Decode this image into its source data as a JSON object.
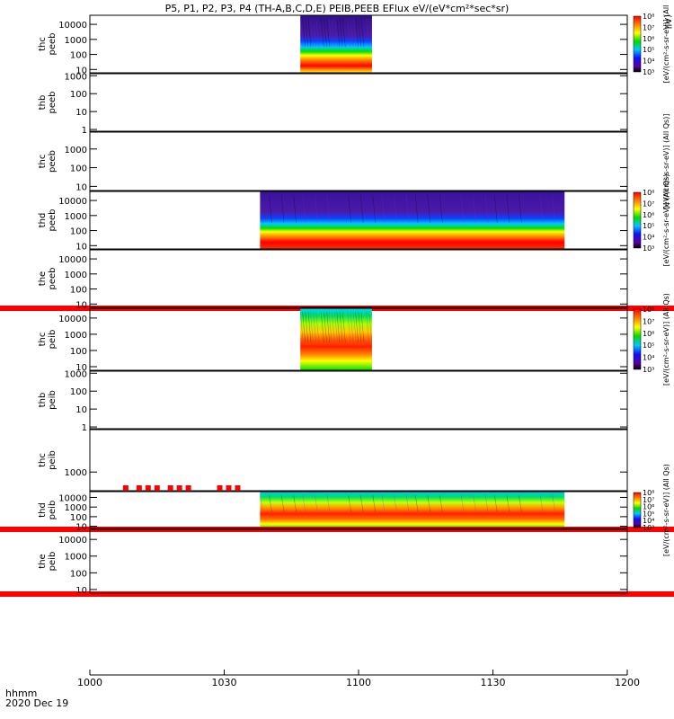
{
  "title": "P5, P1, P2, P3, P4 (TH-A,B,C,D,E) PEIB,PEEB EFlux eV/(eV*cm²*sec*sr)",
  "title_right_fragment": "(All",
  "time_axis": {
    "label_line1": "hhmm",
    "label_line2": "2020 Dec 19",
    "ticks": [
      {
        "t": 1000,
        "label": "1000"
      },
      {
        "t": 1030,
        "label": "1030"
      },
      {
        "t": 1060,
        "label": "1100"
      },
      {
        "t": 1090,
        "label": "1130"
      },
      {
        "t": 1120,
        "label": "1200"
      }
    ],
    "range_minutes": [
      1000,
      1120
    ]
  },
  "colors": {
    "flag_red": "#ff0000",
    "trace_black": "#000000"
  },
  "chart_data": [
    {
      "type": "heatmap",
      "panel": "thc peeb",
      "ylabel": [
        "thc",
        "peeb"
      ],
      "yscale": "log",
      "ylim": [
        6,
        40000
      ],
      "yticks": [
        {
          "v": 10,
          "label": "10"
        },
        {
          "v": 100,
          "label": "100"
        },
        {
          "v": 1000,
          "label": "1000"
        },
        {
          "v": 10000,
          "label": "10000"
        }
      ],
      "data_interval_minutes": [
        1047,
        1063
      ],
      "colorbar": {
        "range": [
          1000,
          100000000
        ],
        "ticks": [
          {
            "v": 1000,
            "label": "10³"
          },
          {
            "v": 10000,
            "label": "10⁴"
          },
          {
            "v": 100000,
            "label": "10⁵"
          },
          {
            "v": 1000000,
            "label": "10⁶"
          },
          {
            "v": 10000000,
            "label": "10⁷"
          },
          {
            "v": 100000000,
            "label": "10⁸"
          }
        ],
        "label": "[eV/(cm²-s-sr-eV)] (All"
      }
    },
    {
      "type": "heatmap",
      "panel": "thb peeb",
      "ylabel": [
        "thb",
        "peeb"
      ],
      "yscale": "log",
      "ylim": [
        0.8,
        1300
      ],
      "yticks": [
        {
          "v": 1,
          "label": "1"
        },
        {
          "v": 10,
          "label": "10"
        },
        {
          "v": 100,
          "label": "100"
        },
        {
          "v": 1000,
          "label": "1000"
        }
      ],
      "data_interval_minutes": null
    },
    {
      "type": "heatmap",
      "panel": "thc peeb",
      "ylabel": [
        "thc",
        "peeb"
      ],
      "yscale": "log",
      "ylim": [
        6,
        8000
      ],
      "yticks": [
        {
          "v": 10,
          "label": "10"
        },
        {
          "v": 100,
          "label": "100"
        },
        {
          "v": 1000,
          "label": "1000"
        }
      ],
      "data_interval_minutes": null,
      "colorbar_label": "[eV/(cm²-s-sr-eV)] (All Qs)]"
    },
    {
      "type": "heatmap",
      "panel": "thd peeb",
      "ylabel": [
        "thd",
        "peeb"
      ],
      "yscale": "log",
      "ylim": [
        6,
        40000
      ],
      "yticks": [
        {
          "v": 10,
          "label": "10"
        },
        {
          "v": 100,
          "label": "100"
        },
        {
          "v": 1000,
          "label": "1000"
        },
        {
          "v": 10000,
          "label": "10000"
        }
      ],
      "data_interval_minutes": [
        1038,
        1106
      ],
      "colorbar": {
        "range": [
          1000,
          100000000
        ],
        "ticks": [
          {
            "v": 1000,
            "label": "10³"
          },
          {
            "v": 10000,
            "label": "10⁴"
          },
          {
            "v": 100000,
            "label": "10⁵"
          },
          {
            "v": 1000000,
            "label": "10⁶"
          },
          {
            "v": 10000000,
            "label": "10⁷"
          },
          {
            "v": 100000000,
            "label": "10⁸"
          }
        ],
        "label": "[eV/(cm²-s-sr-eV)] (All Qs)"
      }
    },
    {
      "type": "heatmap",
      "panel": "the peeb",
      "ylabel": [
        "the",
        "peeb"
      ],
      "yscale": "log",
      "ylim": [
        6,
        40000
      ],
      "yticks": [
        {
          "v": 10,
          "label": "10"
        },
        {
          "v": 100,
          "label": "100"
        },
        {
          "v": 1000,
          "label": "1000"
        },
        {
          "v": 10000,
          "label": "10000"
        }
      ],
      "data_interval_minutes": null,
      "flag_intervals_minutes": [
        [
          1000,
          1120
        ]
      ]
    },
    {
      "type": "heatmap",
      "panel": "thc peib",
      "ylabel": [
        "thc",
        "peib"
      ],
      "yscale": "log",
      "ylim": [
        6,
        40000
      ],
      "yticks": [
        {
          "v": 10,
          "label": "10"
        },
        {
          "v": 100,
          "label": "100"
        },
        {
          "v": 1000,
          "label": "1000"
        },
        {
          "v": 10000,
          "label": "10000"
        }
      ],
      "data_interval_minutes": [
        1047,
        1063
      ],
      "colorbar": {
        "range": [
          1000,
          100000000
        ],
        "ticks": [
          {
            "v": 1000,
            "label": "10³"
          },
          {
            "v": 10000,
            "label": "10⁴"
          },
          {
            "v": 100000,
            "label": "10⁵"
          },
          {
            "v": 1000000,
            "label": "10⁶"
          },
          {
            "v": 10000000,
            "label": "10⁷"
          },
          {
            "v": 100000000,
            "label": "10⁸"
          }
        ],
        "label": "[eV/(cm²-s-sr-eV)] (All Qs)"
      }
    },
    {
      "type": "heatmap",
      "panel": "thb peib",
      "ylabel": [
        "thb",
        "peib"
      ],
      "yscale": "log",
      "ylim": [
        0.8,
        1300
      ],
      "yticks": [
        {
          "v": 1,
          "label": "1"
        },
        {
          "v": 10,
          "label": "10"
        },
        {
          "v": 100,
          "label": "100"
        },
        {
          "v": 1000,
          "label": "1000"
        }
      ],
      "data_interval_minutes": null
    },
    {
      "type": "heatmap",
      "panel": "thc peib",
      "ylabel": [
        "thc",
        "peib"
      ],
      "yscale": "log",
      "ylim": [
        400,
        8000
      ],
      "yticks": [
        {
          "v": 1000,
          "label": "1000"
        }
      ],
      "data_interval_minutes": null
    },
    {
      "type": "heatmap",
      "panel": "thd peib",
      "ylabel": [
        "thd",
        "peib"
      ],
      "yscale": "log",
      "ylim": [
        6,
        40000
      ],
      "yticks": [
        {
          "v": 10,
          "label": "10"
        },
        {
          "v": 100,
          "label": "100"
        },
        {
          "v": 1000,
          "label": "1000"
        },
        {
          "v": 10000,
          "label": "10000"
        }
      ],
      "data_interval_minutes": [
        1038,
        1106
      ],
      "flag_intervals_minutes": [
        [
          1000,
          1120
        ]
      ],
      "flag_blocks_minutes": [
        1008,
        1011,
        1013,
        1015,
        1018,
        1020,
        1022,
        1029,
        1031,
        1033
      ],
      "colorbar": {
        "range": [
          1000,
          100000000
        ],
        "ticks": [
          {
            "v": 1000,
            "label": "10³"
          },
          {
            "v": 10000,
            "label": "10⁴"
          },
          {
            "v": 100000,
            "label": "10⁵"
          },
          {
            "v": 1000000,
            "label": "10⁶"
          },
          {
            "v": 10000000,
            "label": "10⁷"
          },
          {
            "v": 100000000,
            "label": "10⁸"
          }
        ],
        "label": "[eV/(cm²-s-sr-eV)] (All Qs)"
      }
    },
    {
      "type": "heatmap",
      "panel": "the peib",
      "ylabel": [
        "the",
        "peib"
      ],
      "yscale": "log",
      "ylim": [
        6,
        40000
      ],
      "yticks": [
        {
          "v": 10,
          "label": "10"
        },
        {
          "v": 100,
          "label": "100"
        },
        {
          "v": 1000,
          "label": "1000"
        },
        {
          "v": 10000,
          "label": "10000"
        }
      ],
      "data_interval_minutes": null,
      "flag_intervals_minutes": [
        [
          1000,
          1120
        ]
      ]
    }
  ]
}
